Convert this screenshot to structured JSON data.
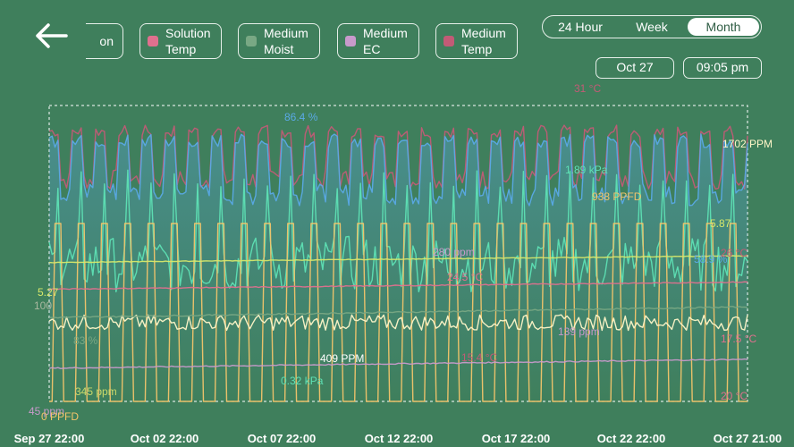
{
  "header": {
    "back_icon": "arrow-left-icon",
    "legend": [
      {
        "label": "on",
        "color": "",
        "partial": true
      },
      {
        "label": "Solution\nTemp",
        "color": "#e0708e"
      },
      {
        "label": "Medium\nMoist",
        "color": "#79a884"
      },
      {
        "label": "Medium\nEC",
        "color": "#c89acb"
      },
      {
        "label": "Medium\nTemp",
        "color": "#c25b76"
      }
    ],
    "range_options": [
      "24 Hour",
      "Week",
      "Month"
    ],
    "range_selected": "Month",
    "date": "Oct 27",
    "time": "09:05 pm"
  },
  "chart_data": {
    "type": "line",
    "x_ticks": [
      "Sep 27 22:00",
      "Oct 02 22:00",
      "Oct 07 22:00",
      "Oct 12 22:00",
      "Oct 17 22:00",
      "Oct 22 22:00",
      "Oct 27 21:00"
    ],
    "x_range": [
      "Sep 27 22:00",
      "Oct 27 21:00"
    ],
    "annotations": [
      {
        "text": "31 °C",
        "color": "#c25b76"
      },
      {
        "text": "86.4 %",
        "color": "#5aa9e6"
      },
      {
        "text": "1702 PPM",
        "color": "#fff6c8"
      },
      {
        "text": "1.89 kPa",
        "color": "#5ee0b4"
      },
      {
        "text": "938 PPFD",
        "color": "#f2c46a"
      },
      {
        "text": "5.87",
        "color": "#d7e86a"
      },
      {
        "text": "5.27",
        "color": "#d7e86a"
      },
      {
        "text": "100",
        "color": "#aab8a0"
      },
      {
        "text": "58.9 %",
        "color": "#5aa9e6"
      },
      {
        "text": "26 °C",
        "color": "#c25b76"
      },
      {
        "text": "280 ppm",
        "color": "#c89acb"
      },
      {
        "text": "24.5 °C",
        "color": "#e0708e"
      },
      {
        "text": "83 %",
        "color": "#79a884"
      },
      {
        "text": "139 ppm",
        "color": "#c89acb"
      },
      {
        "text": "17.5 °C",
        "color": "#e0708e"
      },
      {
        "text": "409 PPM",
        "color": "#ffffff"
      },
      {
        "text": "345 ppm",
        "color": "#c9d86a"
      },
      {
        "text": "0.32 kPa",
        "color": "#5ee0b4"
      },
      {
        "text": "15.4 °C",
        "color": "#c25b76"
      },
      {
        "text": "45 ppm",
        "color": "#c89acb"
      },
      {
        "text": "0 PPFD",
        "color": "#f2c46a"
      },
      {
        "text": "20 °C",
        "color": "#e0708e"
      }
    ],
    "series": [
      {
        "name": "Medium Temp",
        "color": "#c25b76",
        "min": 15.4,
        "max": 31,
        "unit": "°C",
        "pattern": "daily"
      },
      {
        "name": "",
        "color": "#5aa9e6",
        "min": 58.9,
        "max": 86.4,
        "unit": "%",
        "pattern": "daily"
      },
      {
        "name": "",
        "color": "#5ee0b4",
        "min": 0.32,
        "max": 1.89,
        "unit": "kPa",
        "pattern": "spiky"
      },
      {
        "name": "",
        "color": "#f2c46a",
        "min": 0,
        "max": 938,
        "unit": "PPFD",
        "pattern": "square"
      },
      {
        "name": "",
        "color": "#d7e86a",
        "min": 5.27,
        "max": 5.87,
        "unit": "",
        "pattern": "flat"
      },
      {
        "name": "",
        "color": "#fff6c8",
        "min": 409,
        "max": 1702,
        "unit": "PPM",
        "pattern": "noisy"
      },
      {
        "name": "Medium EC",
        "color": "#c89acb",
        "min": 45,
        "max": 280,
        "unit": "ppm",
        "pattern": "slow"
      },
      {
        "name": "Solution Temp",
        "color": "#e0708e",
        "min": 17.5,
        "max": 24.5,
        "unit": "°C",
        "pattern": "slow"
      },
      {
        "name": "Medium Moist",
        "color": "#79a884",
        "min": 83,
        "max": 100,
        "unit": "%",
        "pattern": "slow"
      }
    ],
    "grid": false,
    "legend_position": "top"
  }
}
